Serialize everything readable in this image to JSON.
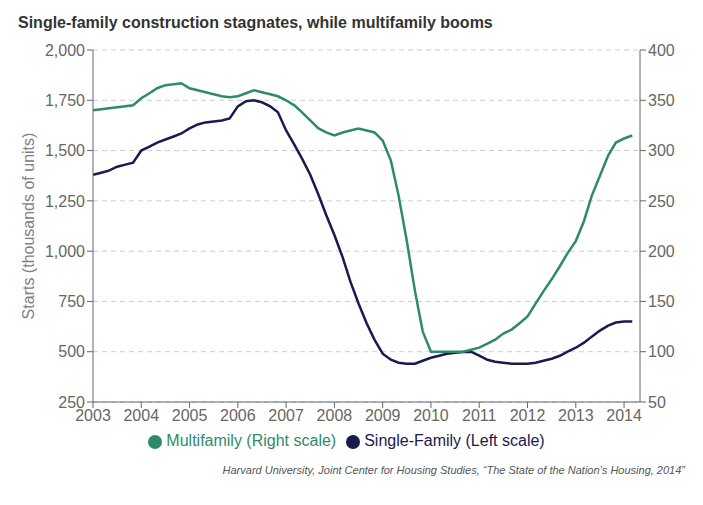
{
  "chart_data": {
    "type": "line",
    "title": "Single-family construction stagnates, while multifamily booms",
    "ylabel": "Starts (thousands of units)",
    "annotations": [
      "Harvard University, Joint Center for Housing Studies, “The State of the Nation’s Housing, 2014”"
    ],
    "x": [
      2003.0,
      2003.17,
      2003.33,
      2003.5,
      2003.67,
      2003.83,
      2004.0,
      2004.17,
      2004.33,
      2004.5,
      2004.67,
      2004.83,
      2005.0,
      2005.17,
      2005.33,
      2005.5,
      2005.67,
      2005.83,
      2006.0,
      2006.17,
      2006.33,
      2006.5,
      2006.67,
      2006.83,
      2007.0,
      2007.17,
      2007.33,
      2007.5,
      2007.67,
      2007.83,
      2008.0,
      2008.17,
      2008.33,
      2008.5,
      2008.67,
      2008.83,
      2009.0,
      2009.17,
      2009.33,
      2009.5,
      2009.67,
      2009.83,
      2010.0,
      2010.17,
      2010.33,
      2010.5,
      2010.67,
      2010.83,
      2011.0,
      2011.17,
      2011.33,
      2011.5,
      2011.67,
      2011.83,
      2012.0,
      2012.17,
      2012.33,
      2012.5,
      2012.67,
      2012.83,
      2013.0,
      2013.17,
      2013.33,
      2013.5,
      2013.67,
      2013.83,
      2014.0,
      2014.17
    ],
    "series": [
      {
        "name": "Single-Family (Left scale)",
        "color": "#1a1a4e",
        "values": [
          1380,
          1390,
          1400,
          1420,
          1430,
          1440,
          1500,
          1520,
          1540,
          1555,
          1570,
          1585,
          1610,
          1630,
          1640,
          1645,
          1650,
          1660,
          1720,
          1745,
          1750,
          1740,
          1720,
          1690,
          1600,
          1530,
          1460,
          1380,
          1280,
          1180,
          1080,
          970,
          850,
          740,
          640,
          560,
          490,
          460,
          445,
          440,
          440,
          455,
          470,
          480,
          490,
          495,
          498,
          500,
          480,
          460,
          450,
          445,
          440,
          440,
          440,
          445,
          455,
          465,
          480,
          500,
          520,
          545,
          575,
          605,
          630,
          645,
          650,
          650
        ]
      },
      {
        "name": "Multifamily (Right scale)",
        "color": "#2e8b6a",
        "axis": "y2",
        "values": [
          340,
          341,
          342,
          343,
          344,
          345,
          352,
          357,
          362,
          365,
          366,
          367,
          362,
          360,
          358,
          356,
          354,
          353,
          354,
          357,
          360,
          358,
          356,
          354,
          350,
          345,
          338,
          330,
          322,
          318,
          315,
          318,
          320,
          322,
          320,
          318,
          310,
          290,
          255,
          210,
          160,
          120,
          100,
          100,
          100,
          100,
          100,
          102,
          104,
          108,
          112,
          118,
          122,
          128,
          135,
          148,
          160,
          172,
          185,
          198,
          210,
          230,
          255,
          275,
          295,
          308,
          312,
          315
        ]
      }
    ],
    "xlim": [
      2003,
      2014.33
    ],
    "xticks": [
      2003,
      2004,
      2005,
      2006,
      2007,
      2008,
      2009,
      2010,
      2011,
      2012,
      2013,
      2014
    ],
    "ylim": [
      250,
      2000
    ],
    "yticks": [
      250,
      500,
      750,
      {
        "value": 1000,
        "label": "1,000"
      },
      {
        "value": 1250,
        "label": "1,250"
      },
      {
        "value": 1500,
        "label": "1,500"
      },
      {
        "value": 1750,
        "label": "1,750"
      },
      {
        "value": 2000,
        "label": "2,000"
      }
    ],
    "y2lim": [
      50,
      400
    ],
    "y2ticks": [
      50,
      100,
      150,
      200,
      250,
      300,
      350,
      400
    ],
    "grid": true
  }
}
